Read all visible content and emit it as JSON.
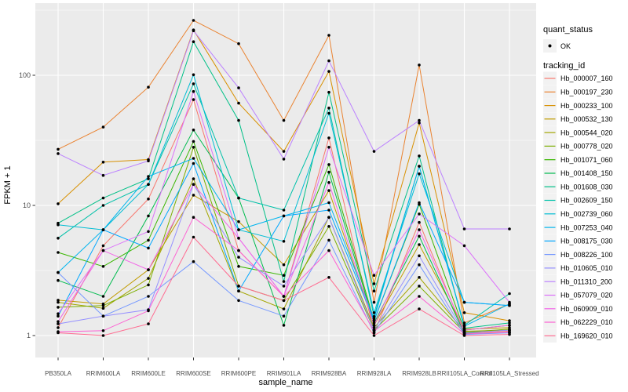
{
  "figure": {
    "background": "#FFFFFF",
    "panel_background": "#EBEBEB",
    "grid_color": "#FFFFFF",
    "tick_color": "#333333",
    "tick_label_color": "#4D4D4D",
    "point_color": "#000000",
    "legend_key_background": "#F2F2F2"
  },
  "legend": {
    "quant_status": {
      "title": "quant_status",
      "items": [
        {
          "label": "OK",
          "glyph": "point-icon",
          "color": "#000000"
        }
      ]
    },
    "tracking_id": {
      "title": "tracking_id"
    }
  },
  "chart_data": {
    "type": "line",
    "title": "",
    "xlabel": "sample_name",
    "ylabel": "FPKM + 1",
    "y_scale": "log10",
    "grid": true,
    "legend_position": "right",
    "y_ticks": [
      1,
      10,
      100
    ],
    "y_minor_ticks": [
      3.162,
      31.62,
      316.2
    ],
    "ylim": [
      0.68,
      360
    ],
    "categories": [
      "PB350LA",
      "RRIM600LA",
      "RRIM600LE",
      "RRIM600SE",
      "RRIM600PE",
      "RRIM901LA",
      "RRIM928BA",
      "RRIM928LA",
      "RRIM928LB",
      "RRII105LA_Control",
      "RRII105LA_Stressed"
    ],
    "series": [
      {
        "name": "Hb_000007_160",
        "color": "#F8766D",
        "values": [
          1.15,
          4.9,
          11.2,
          65,
          4.5,
          2.0,
          33,
          1.05,
          7.4,
          1.05,
          1.08
        ]
      },
      {
        "name": "Hb_000197_230",
        "color": "#EA8331",
        "values": [
          27,
          40,
          81,
          264,
          175,
          45,
          203,
          1.8,
          120,
          1.25,
          1.75
        ]
      },
      {
        "name": "Hb_000233_100",
        "color": "#D89000",
        "values": [
          10.3,
          21.5,
          22.5,
          223,
          61,
          26,
          107,
          2.5,
          43,
          1.5,
          1.3
        ]
      },
      {
        "name": "Hb_000532_130",
        "color": "#C09B00",
        "values": [
          1.87,
          1.75,
          3.2,
          12,
          7.5,
          3.5,
          13,
          1.2,
          5.0,
          1.12,
          1.15
        ]
      },
      {
        "name": "Hb_000544_020",
        "color": "#A3A500",
        "values": [
          1.8,
          1.62,
          2.75,
          16,
          2.2,
          1.6,
          8.1,
          1.15,
          2.8,
          1.08,
          1.1
        ]
      },
      {
        "name": "Hb_000778_020",
        "color": "#7CAE00",
        "values": [
          1.65,
          1.7,
          2.45,
          28,
          2.4,
          1.86,
          6.9,
          1.1,
          2.4,
          1.06,
          1.12
        ]
      },
      {
        "name": "Hb_001071_060",
        "color": "#39B600",
        "values": [
          4.35,
          3.4,
          5.4,
          31,
          3.4,
          2.9,
          20.6,
          1.3,
          10.2,
          1.1,
          1.2
        ]
      },
      {
        "name": "Hb_001408_150",
        "color": "#00BB4E",
        "values": [
          2.65,
          2.0,
          8.3,
          38,
          11.4,
          1.2,
          18,
          1.25,
          5.8,
          1.04,
          1.05
        ]
      },
      {
        "name": "Hb_001608_030",
        "color": "#00C087",
        "values": [
          7.3,
          11.4,
          16,
          181,
          45,
          2.6,
          74,
          2.2,
          24,
          1.14,
          1.25
        ]
      },
      {
        "name": "Hb_002609_150",
        "color": "#00C1A9",
        "values": [
          5.6,
          10,
          14.5,
          86,
          11.4,
          9.2,
          56,
          1.4,
          20,
          1.2,
          2.1
        ]
      },
      {
        "name": "Hb_002739_060",
        "color": "#00BDD4",
        "values": [
          7.1,
          6.5,
          14.5,
          101,
          6.5,
          5.3,
          51,
          1.5,
          17.5,
          1.8,
          1.7
        ]
      },
      {
        "name": "Hb_007253_040",
        "color": "#00B5EE",
        "values": [
          3.05,
          6.5,
          16.7,
          23,
          6.5,
          8.3,
          10.5,
          1.35,
          20,
          1.18,
          1.75
        ]
      },
      {
        "name": "Hb_008175_030",
        "color": "#00A7FF",
        "values": [
          1.41,
          6.5,
          4.7,
          21,
          2.2,
          8.3,
          9.2,
          1.3,
          10.5,
          1.8,
          1.7
        ]
      },
      {
        "name": "Hb_008226_100",
        "color": "#7699FF",
        "values": [
          3.05,
          1.41,
          2.0,
          3.7,
          1.86,
          1.41,
          5.4,
          1.05,
          3.5,
          1.02,
          1.05
        ]
      },
      {
        "name": "Hb_010605_010",
        "color": "#9590FF",
        "values": [
          1.23,
          1.41,
          1.58,
          14.5,
          4.0,
          2.4,
          8.1,
          1.1,
          4.1,
          1.05,
          1.1
        ]
      },
      {
        "name": "Hb_011310_200",
        "color": "#BC81FF",
        "values": [
          25,
          17,
          22,
          220,
          80,
          22.7,
          129,
          26,
          45,
          6.6,
          6.6
        ]
      },
      {
        "name": "Hb_057079_020",
        "color": "#DC71FA",
        "values": [
          1.47,
          4.5,
          6.3,
          75,
          5.6,
          2.0,
          28,
          2.9,
          8.6,
          4.9,
          1.8
        ]
      },
      {
        "name": "Hb_060909_010",
        "color": "#F265E8",
        "values": [
          1.28,
          4.5,
          3.2,
          14.5,
          5.6,
          2.0,
          15,
          1.2,
          6.5,
          1.1,
          1.2
        ]
      },
      {
        "name": "Hb_062229_010",
        "color": "#FD61D3",
        "values": [
          1.07,
          1.09,
          1.55,
          8.1,
          4.5,
          2.0,
          4.5,
          1.08,
          2.0,
          1.03,
          1.06
        ]
      },
      {
        "name": "Hb_169620_010",
        "color": "#FF6C91",
        "values": [
          1.05,
          1.0,
          1.23,
          5.7,
          2.4,
          1.86,
          2.8,
          1.0,
          1.6,
          1.0,
          1.02
        ]
      }
    ]
  }
}
